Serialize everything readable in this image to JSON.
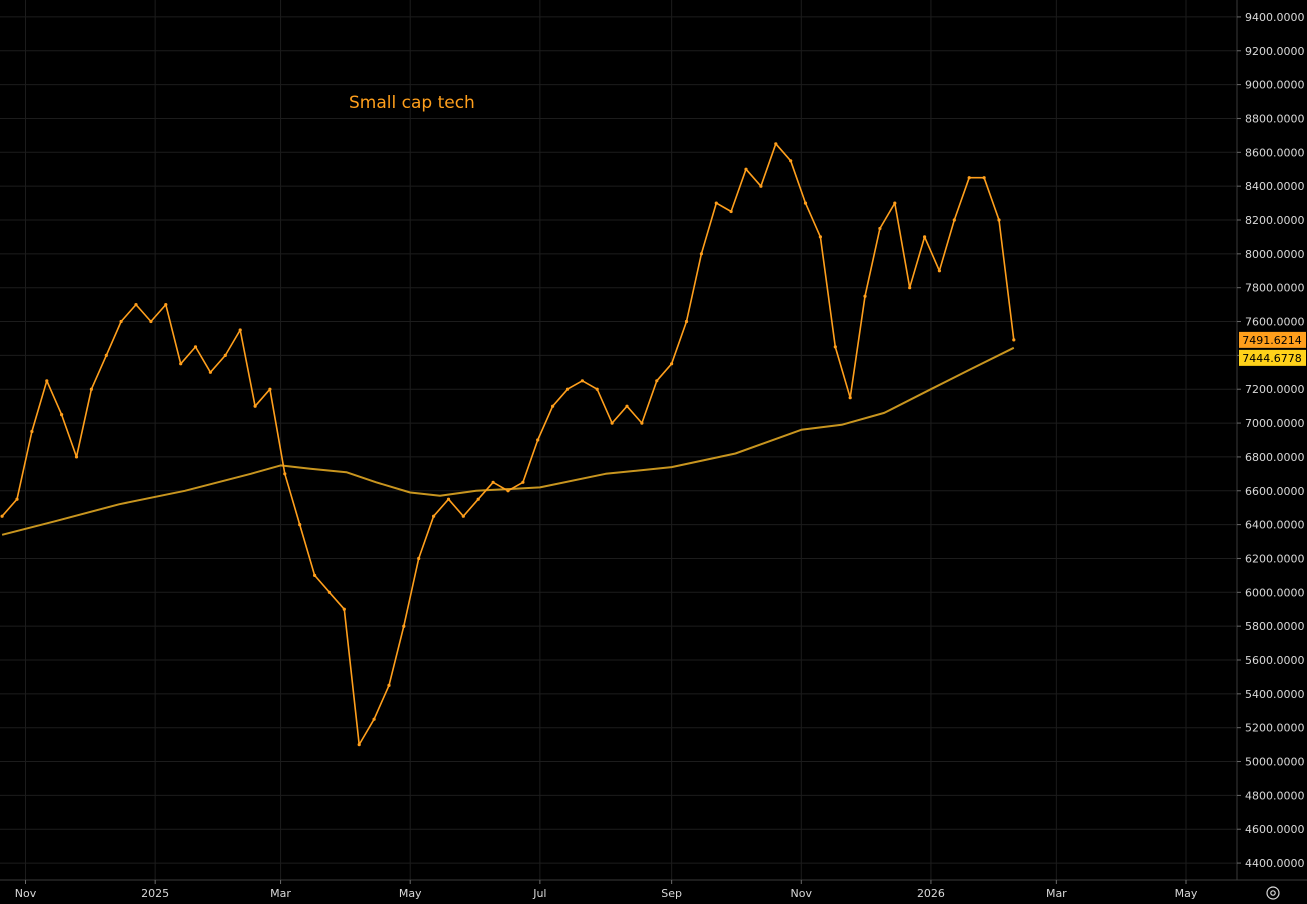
{
  "chart_data": {
    "type": "line",
    "title": "Small cap tech",
    "xlabel": "",
    "ylabel": "",
    "ylim": [
      4300,
      9500
    ],
    "grid": true,
    "y_ticks": [
      4400,
      4600,
      4800,
      5000,
      5200,
      5400,
      5600,
      5800,
      6000,
      6200,
      6400,
      6600,
      6800,
      7000,
      7200,
      7400,
      7600,
      7800,
      8000,
      8200,
      8400,
      8600,
      8800,
      9000,
      9200,
      9400
    ],
    "y_tick_labels": [
      "4400.0000",
      "4600.0000",
      "4800.0000",
      "5000.0000",
      "5200.0000",
      "5400.0000",
      "5600.0000",
      "5800.0000",
      "6000.0000",
      "6200.0000",
      "6400.0000",
      "6600.0000",
      "6800.0000",
      "7000.0000",
      "7200.0000",
      "7400.0000",
      "7600.0000",
      "7800.0000",
      "8000.0000",
      "8200.0000",
      "8400.0000",
      "8600.0000",
      "8800.0000",
      "9000.0000",
      "9200.0000",
      "9400.0000"
    ],
    "x_ticks": [
      {
        "label": "Nov",
        "date": "2024-11-01"
      },
      {
        "label": "2025",
        "date": "2025-01-01"
      },
      {
        "label": "Mar",
        "date": "2025-03-01"
      },
      {
        "label": "May",
        "date": "2025-05-01"
      },
      {
        "label": "Jul",
        "date": "2025-07-01"
      },
      {
        "label": "Sep",
        "date": "2025-09-01"
      },
      {
        "label": "Nov",
        "date": "2025-11-01"
      },
      {
        "label": "2026",
        "date": "2026-01-01"
      },
      {
        "label": "Mar",
        "date": "2026-03-01"
      },
      {
        "label": "May",
        "date": "2026-05-01"
      }
    ],
    "series": [
      {
        "kind": "price",
        "color": "#ff9f1c",
        "points": [
          {
            "date": "2024-10-21",
            "value": 6450
          },
          {
            "date": "2024-10-28",
            "value": 6550
          },
          {
            "date": "2024-11-04",
            "value": 6950
          },
          {
            "date": "2024-11-11",
            "value": 7250
          },
          {
            "date": "2024-11-18",
            "value": 7050
          },
          {
            "date": "2024-11-25",
            "value": 6800
          },
          {
            "date": "2024-12-02",
            "value": 7200
          },
          {
            "date": "2024-12-09",
            "value": 7400
          },
          {
            "date": "2024-12-16",
            "value": 7600
          },
          {
            "date": "2024-12-23",
            "value": 7700
          },
          {
            "date": "2024-12-30",
            "value": 7600
          },
          {
            "date": "2025-01-06",
            "value": 7700
          },
          {
            "date": "2025-01-13",
            "value": 7350
          },
          {
            "date": "2025-01-20",
            "value": 7450
          },
          {
            "date": "2025-01-27",
            "value": 7300
          },
          {
            "date": "2025-02-03",
            "value": 7400
          },
          {
            "date": "2025-02-10",
            "value": 7550
          },
          {
            "date": "2025-02-17",
            "value": 7100
          },
          {
            "date": "2025-02-24",
            "value": 7200
          },
          {
            "date": "2025-03-03",
            "value": 6700
          },
          {
            "date": "2025-03-10",
            "value": 6400
          },
          {
            "date": "2025-03-17",
            "value": 6100
          },
          {
            "date": "2025-03-24",
            "value": 6000
          },
          {
            "date": "2025-03-31",
            "value": 5900
          },
          {
            "date": "2025-04-07",
            "value": 5100
          },
          {
            "date": "2025-04-14",
            "value": 5250
          },
          {
            "date": "2025-04-21",
            "value": 5450
          },
          {
            "date": "2025-04-28",
            "value": 5800
          },
          {
            "date": "2025-05-05",
            "value": 6200
          },
          {
            "date": "2025-05-12",
            "value": 6450
          },
          {
            "date": "2025-05-19",
            "value": 6550
          },
          {
            "date": "2025-05-26",
            "value": 6450
          },
          {
            "date": "2025-06-02",
            "value": 6550
          },
          {
            "date": "2025-06-09",
            "value": 6650
          },
          {
            "date": "2025-06-16",
            "value": 6600
          },
          {
            "date": "2025-06-23",
            "value": 6650
          },
          {
            "date": "2025-06-30",
            "value": 6900
          },
          {
            "date": "2025-07-07",
            "value": 7100
          },
          {
            "date": "2025-07-14",
            "value": 7200
          },
          {
            "date": "2025-07-21",
            "value": 7250
          },
          {
            "date": "2025-07-28",
            "value": 7200
          },
          {
            "date": "2025-08-04",
            "value": 7000
          },
          {
            "date": "2025-08-11",
            "value": 7100
          },
          {
            "date": "2025-08-18",
            "value": 7000
          },
          {
            "date": "2025-08-25",
            "value": 7250
          },
          {
            "date": "2025-09-01",
            "value": 7350
          },
          {
            "date": "2025-09-08",
            "value": 7600
          },
          {
            "date": "2025-09-15",
            "value": 8000
          },
          {
            "date": "2025-09-22",
            "value": 8300
          },
          {
            "date": "2025-09-29",
            "value": 8250
          },
          {
            "date": "2025-10-06",
            "value": 8500
          },
          {
            "date": "2025-10-13",
            "value": 8400
          },
          {
            "date": "2025-10-20",
            "value": 8650
          },
          {
            "date": "2025-10-27",
            "value": 8550
          },
          {
            "date": "2025-11-03",
            "value": 8300
          },
          {
            "date": "2025-11-10",
            "value": 8100
          },
          {
            "date": "2025-11-17",
            "value": 7450
          },
          {
            "date": "2025-11-24",
            "value": 7150
          },
          {
            "date": "2025-12-01",
            "value": 7750
          },
          {
            "date": "2025-12-08",
            "value": 8150
          },
          {
            "date": "2025-12-15",
            "value": 8300
          },
          {
            "date": "2025-12-22",
            "value": 7800
          },
          {
            "date": "2025-12-29",
            "value": 8100
          },
          {
            "date": "2026-01-05",
            "value": 7900
          },
          {
            "date": "2026-01-12",
            "value": 8200
          },
          {
            "date": "2026-01-19",
            "value": 8450
          },
          {
            "date": "2026-01-26",
            "value": 8450
          },
          {
            "date": "2026-02-02",
            "value": 8200
          },
          {
            "date": "2026-02-09",
            "value": 7491.6214
          }
        ]
      },
      {
        "kind": "moving-average",
        "color": "#c8951f",
        "points": [
          {
            "date": "2024-10-21",
            "value": 6340
          },
          {
            "date": "2024-11-15",
            "value": 6420
          },
          {
            "date": "2024-12-15",
            "value": 6520
          },
          {
            "date": "2025-01-15",
            "value": 6600
          },
          {
            "date": "2025-02-15",
            "value": 6700
          },
          {
            "date": "2025-03-01",
            "value": 6750
          },
          {
            "date": "2025-03-15",
            "value": 6730
          },
          {
            "date": "2025-04-01",
            "value": 6710
          },
          {
            "date": "2025-04-15",
            "value": 6650
          },
          {
            "date": "2025-05-01",
            "value": 6590
          },
          {
            "date": "2025-05-15",
            "value": 6570
          },
          {
            "date": "2025-06-01",
            "value": 6600
          },
          {
            "date": "2025-07-01",
            "value": 6620
          },
          {
            "date": "2025-08-01",
            "value": 6700
          },
          {
            "date": "2025-09-01",
            "value": 6740
          },
          {
            "date": "2025-10-01",
            "value": 6820
          },
          {
            "date": "2025-11-01",
            "value": 6960
          },
          {
            "date": "2025-11-20",
            "value": 6990
          },
          {
            "date": "2025-12-10",
            "value": 7060
          },
          {
            "date": "2026-01-01",
            "value": 7200
          },
          {
            "date": "2026-01-20",
            "value": 7320
          },
          {
            "date": "2026-02-09",
            "value": 7444.6778
          }
        ]
      }
    ],
    "last_price_badges": [
      {
        "label": "7491.6214",
        "value": 7491.6214,
        "background": "#ff9f1c"
      },
      {
        "label": "7444.6778",
        "value": 7444.6778,
        "background": "#ffd21a"
      }
    ]
  },
  "ui": {
    "settings_icon": "settings-gear-icon"
  }
}
